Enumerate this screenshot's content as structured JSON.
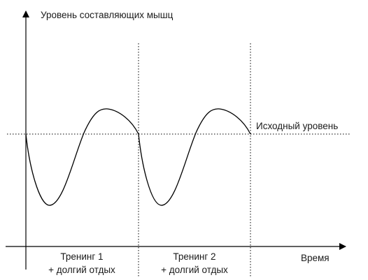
{
  "diagram": {
    "y_axis_label": "Уровень составляющих мышц",
    "x_axis_label": "Время",
    "baseline_label": "Исходный уровень",
    "phases": [
      {
        "line1": "Тренинг 1",
        "line2": "+ долгий отдых"
      },
      {
        "line1": "Тренинг 2",
        "line2": "+ долгий отдых"
      }
    ]
  }
}
